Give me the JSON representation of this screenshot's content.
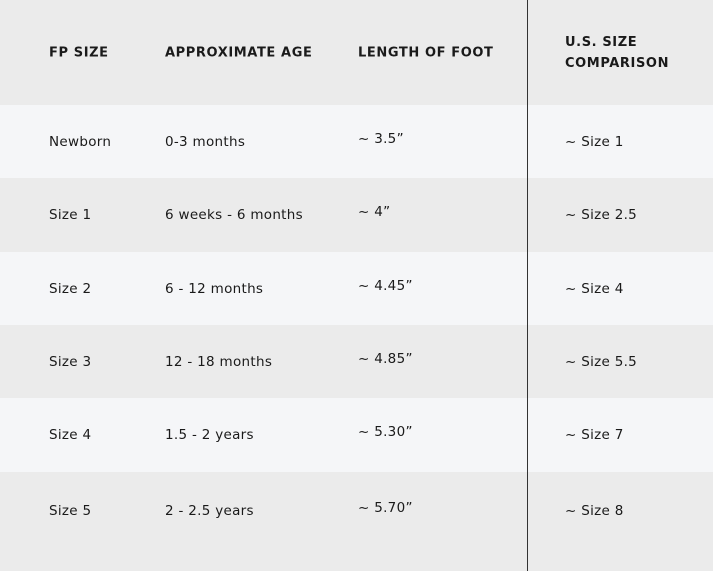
{
  "headers": [
    "FP SIZE",
    "APPROXIMATE AGE",
    "LENGTH OF FOOT",
    "U.S. SIZE COMPARISON"
  ],
  "header_lines": {
    "us_size_1": "U.S. SIZE",
    "us_size_2": "COMPARISON"
  },
  "rows": [
    [
      "Newborn",
      "0-3 months",
      "~ 3.5”",
      "~ Size 1"
    ],
    [
      "Size 1",
      "6 weeks - 6 months",
      "~ 4”",
      "~ Size 2.5"
    ],
    [
      "Size 2",
      "6 - 12 months",
      "~ 4.45”",
      "~ Size 4"
    ],
    [
      "Size 3",
      "12 - 18 months",
      "~ 4.85”",
      "~ Size 5.5"
    ],
    [
      "Size 4",
      "1.5 - 2 years",
      "~ 5.30”",
      "~ Size 7"
    ],
    [
      "Size 5",
      "2 - 2.5 years",
      "~ 5.70”",
      "~ Size 8"
    ]
  ],
  "colors": {
    "header_bg": "#ebebeb",
    "row_light": "#f5f6f8",
    "row_dark": "#ebebeb",
    "divider": "#333333"
  }
}
